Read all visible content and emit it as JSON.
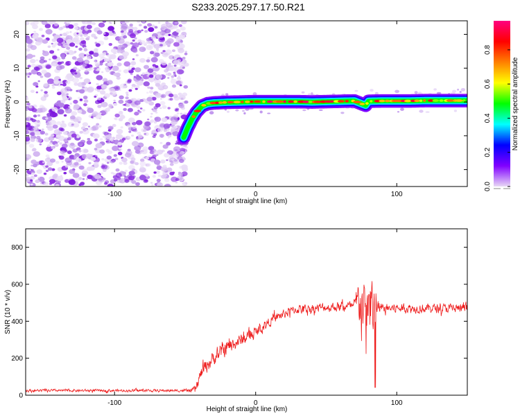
{
  "figure_title": "S233.2025.297.17.50.R21",
  "chart_data": [
    {
      "type": "heatmap",
      "title": "S233.2025.297.17.50.R21",
      "xlabel": "Height of straight line (km)",
      "ylabel": "Frequency (Hz)",
      "xlim": [
        -163,
        150
      ],
      "ylim": [
        -25,
        24
      ],
      "xticks": [
        -100,
        0,
        100
      ],
      "yticks": [
        -20,
        -10,
        0,
        10,
        20
      ],
      "colorbar": {
        "label": "Normalized spectral amplitude",
        "range": [
          0,
          0.97
        ],
        "ticks": [
          "0.0",
          "0.2",
          "0.4",
          "0.6",
          "0.8"
        ],
        "colormap": [
          "#e8d8f5",
          "#8000ff",
          "#0000ff",
          "#00ffff",
          "#00ff00",
          "#ffff00",
          "#ff8000",
          "#ff0000",
          "#ff0080"
        ]
      },
      "noise_region": {
        "x_from": -163,
        "x_to": -51
      },
      "ridge": {
        "x": [
          -51,
          -48,
          -45,
          -42,
          -38,
          -34,
          -30,
          -25,
          -20,
          -10,
          0,
          10,
          20,
          30,
          40,
          50,
          60,
          70,
          78,
          80,
          90,
          100,
          110,
          120,
          130,
          140,
          150
        ],
        "y": [
          -10.5,
          -7.5,
          -5,
          -3,
          -1.2,
          -0.5,
          -0.3,
          -0.2,
          -0.1,
          0,
          0.1,
          0.1,
          0.1,
          0.1,
          0,
          0.1,
          0.2,
          0.3,
          -1.0,
          0.2,
          0.3,
          0.3,
          0.3,
          0.4,
          0.4,
          0.4,
          0.4
        ]
      }
    },
    {
      "type": "line",
      "xlabel": "Height of straight line (km)",
      "ylabel": "SNR (10 * v/v)",
      "xlim": [
        -163,
        150
      ],
      "ylim": [
        0,
        900
      ],
      "xticks": [
        -100,
        0,
        100
      ],
      "yticks": [
        0,
        200,
        400,
        600,
        800
      ],
      "color": "#ee1c1c",
      "series": [
        {
          "name": "SNR",
          "x": [
            -163,
            -140,
            -120,
            -100,
            -80,
            -60,
            -50,
            -45,
            -42,
            -40,
            -38,
            -35,
            -30,
            -25,
            -20,
            -15,
            -10,
            -5,
            0,
            5,
            10,
            15,
            20,
            25,
            30,
            40,
            50,
            60,
            70,
            72,
            74,
            76,
            78,
            80,
            82,
            84,
            86,
            90,
            100,
            110,
            120,
            130,
            140,
            150
          ],
          "y": [
            25,
            25,
            25,
            25,
            25,
            25,
            25,
            25,
            40,
            90,
            130,
            160,
            200,
            230,
            260,
            280,
            300,
            320,
            340,
            370,
            400,
            420,
            440,
            455,
            465,
            470,
            475,
            480,
            480,
            500,
            520,
            480,
            430,
            490,
            520,
            450,
            470,
            470,
            470,
            470,
            470,
            470,
            470,
            470
          ],
          "noise": [
            10,
            10,
            10,
            10,
            10,
            10,
            10,
            15,
            30,
            45,
            50,
            55,
            55,
            55,
            55,
            50,
            50,
            45,
            40,
            40,
            35,
            35,
            35,
            35,
            35,
            35,
            35,
            35,
            40,
            150,
            200,
            210,
            200,
            220,
            280,
            250,
            60,
            35,
            35,
            35,
            35,
            35,
            35,
            35
          ]
        }
      ]
    }
  ]
}
